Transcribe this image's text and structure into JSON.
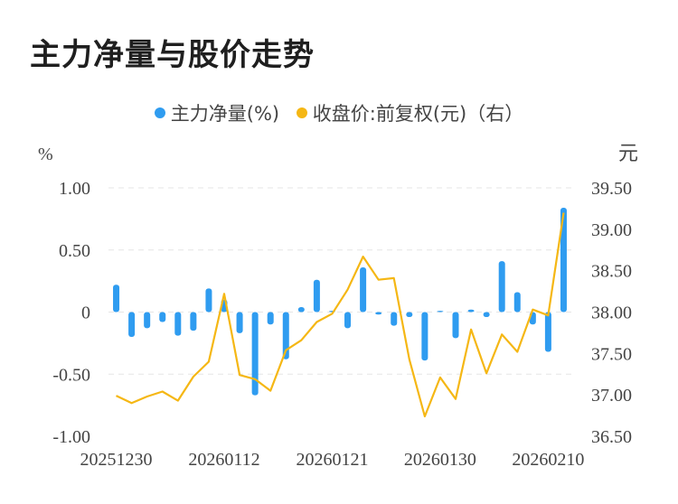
{
  "title": "主力净量与股价走势",
  "legend": {
    "series1": "主力净量(%)",
    "series2": "收盘价:前复权(元)（右）"
  },
  "colors": {
    "bar": "#2f9cf0",
    "line": "#f5b714",
    "grid": "#e6e6e6",
    "text": "#444444"
  },
  "chart_data": {
    "type": "bar+line",
    "left_axis": {
      "unit": "%",
      "ylim": [
        -1.0,
        1.0
      ],
      "ticks": [
        "1.00",
        "0.50",
        "0",
        "-0.50",
        "-1.00"
      ],
      "tick_values": [
        1.0,
        0.5,
        0,
        -0.5,
        -1.0
      ]
    },
    "right_axis": {
      "unit": "元",
      "ylim": [
        36.5,
        39.5
      ],
      "ticks": [
        "39.50",
        "39.00",
        "38.50",
        "38.00",
        "37.50",
        "37.00",
        "36.50"
      ],
      "tick_values": [
        39.5,
        39.0,
        38.5,
        38.0,
        37.5,
        37.0,
        36.5
      ]
    },
    "x_ticks": [
      {
        "index": 0,
        "label": "20251230"
      },
      {
        "index": 7,
        "label": "20260112"
      },
      {
        "index": 14,
        "label": "20260121"
      },
      {
        "index": 21,
        "label": "20260130"
      },
      {
        "index": 28,
        "label": "20260210"
      }
    ],
    "series": [
      {
        "name": "主力净量(%)",
        "type": "bar",
        "axis": "left",
        "values": [
          0.22,
          -0.2,
          -0.13,
          -0.08,
          -0.19,
          -0.15,
          0.19,
          0.1,
          -0.17,
          -0.67,
          -0.1,
          -0.38,
          0.04,
          0.26,
          0.01,
          -0.13,
          0.36,
          -0.02,
          -0.11,
          -0.04,
          -0.39,
          0.01,
          -0.21,
          0.02,
          -0.04,
          0.41,
          0.16,
          -0.1,
          -0.32,
          0.84
        ]
      },
      {
        "name": "收盘价:前复权(元)（右）",
        "type": "line",
        "axis": "right",
        "values": [
          36.99,
          36.9,
          36.98,
          37.04,
          36.93,
          37.22,
          37.4,
          38.22,
          37.24,
          37.19,
          37.05,
          37.54,
          37.66,
          37.88,
          37.98,
          38.27,
          38.67,
          38.39,
          38.41,
          37.43,
          36.74,
          37.21,
          36.95,
          37.79,
          37.26,
          37.73,
          37.52,
          38.03,
          37.96,
          39.2
        ]
      }
    ]
  }
}
